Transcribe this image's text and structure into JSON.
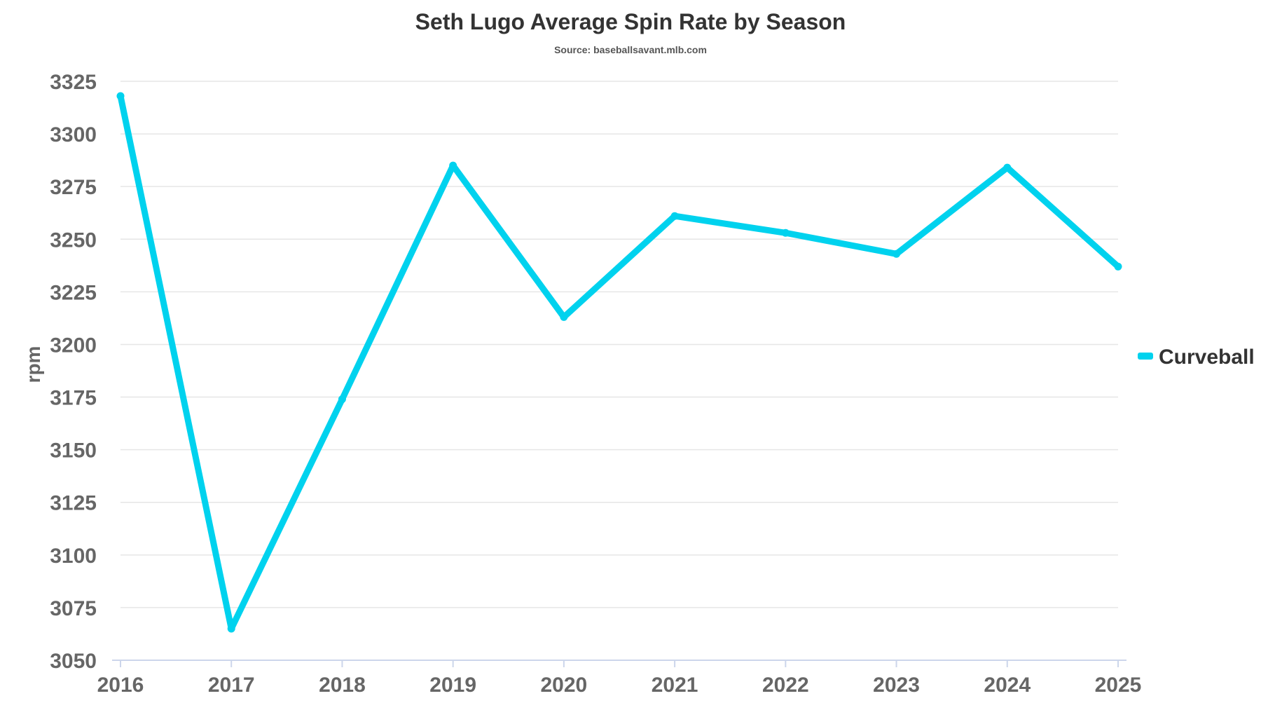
{
  "chart_data": {
    "type": "line",
    "title": "Seth Lugo Average Spin Rate by Season",
    "subtitle": "Source: baseballsavant.mlb.com",
    "xlabel": "",
    "ylabel": "rpm",
    "x": [
      "2016",
      "2017",
      "2018",
      "2019",
      "2020",
      "2021",
      "2022",
      "2023",
      "2024",
      "2025"
    ],
    "series": [
      {
        "name": "Curveball",
        "color": "#00d2ee",
        "values": [
          3318,
          3065,
          3174,
          3285,
          3213,
          3261,
          3253,
          3243,
          3284,
          3237
        ]
      }
    ],
    "ylim": [
      3050,
      3325
    ],
    "yticks": [
      3050,
      3075,
      3100,
      3125,
      3150,
      3175,
      3200,
      3225,
      3250,
      3275,
      3300,
      3325
    ],
    "grid": true,
    "legend_position": "right"
  }
}
